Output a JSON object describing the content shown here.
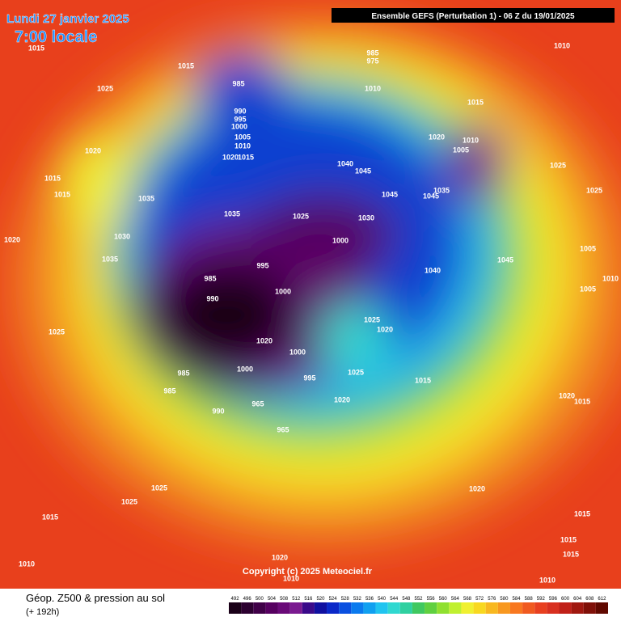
{
  "header": {
    "date": "Lundi 27 janvier 2025",
    "time": "7:00 locale",
    "run": "Ensemble GEFS  (Perturbation 1)  -  06 Z du 19/01/2025"
  },
  "copyright": "Copyright (c) 2025 Meteociel.fr",
  "footer": {
    "title": "Géop. Z500 & pression au sol",
    "lead": "(+ 192h)"
  },
  "colorbar": {
    "ticks": [
      492,
      496,
      500,
      504,
      508,
      512,
      516,
      520,
      524,
      528,
      532,
      536,
      540,
      544,
      548,
      552,
      556,
      560,
      564,
      568,
      572,
      576,
      580,
      584,
      588,
      592,
      596,
      600,
      604,
      608,
      612
    ],
    "colors": [
      "#1a0018",
      "#2c0030",
      "#400048",
      "#560060",
      "#6a0a78",
      "#7a1a90",
      "#3a0a8a",
      "#1010a0",
      "#0a28c8",
      "#0a50e0",
      "#0a7aee",
      "#10a0f0",
      "#20c4f0",
      "#30d8d0",
      "#30d0a0",
      "#40c860",
      "#60d040",
      "#90e030",
      "#c0f030",
      "#f0f030",
      "#f8d820",
      "#f8b820",
      "#f89820",
      "#f87820",
      "#f05a20",
      "#e84020",
      "#d83020",
      "#c02018",
      "#a01810",
      "#801008",
      "#600800"
    ]
  },
  "isobars": [
    1015,
    1025,
    1015,
    985,
    990,
    995,
    1000,
    1005,
    1010,
    1020,
    1015,
    1020,
    1015,
    1015,
    1035,
    1035,
    1025,
    1030,
    1000,
    995,
    985,
    990,
    1000,
    1030,
    1035,
    1020,
    1025,
    1020,
    1000,
    985,
    985,
    990,
    965,
    965,
    995,
    1020,
    1025,
    1020,
    1025,
    1015,
    1040,
    1045,
    1045,
    1045,
    1035,
    1020,
    1005,
    1010,
    1015,
    1010,
    1025,
    1025,
    1040,
    1045,
    1005,
    1005,
    1010,
    1020,
    1015,
    1020,
    1025,
    1025,
    1015,
    1010,
    1015,
    1015,
    1015,
    1020,
    1010,
    1010,
    985,
    975,
    1010,
    1000
  ]
}
